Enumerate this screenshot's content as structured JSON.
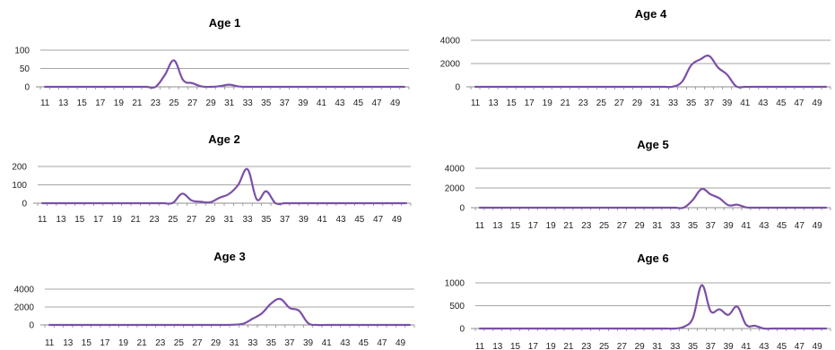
{
  "chart_data": [
    {
      "type": "line",
      "title": "Age 1",
      "x": [
        11,
        12,
        13,
        14,
        15,
        16,
        17,
        18,
        19,
        20,
        21,
        22,
        23,
        24,
        25,
        26,
        27,
        28,
        29,
        30,
        31,
        32,
        33,
        34,
        35,
        36,
        37,
        38,
        39,
        40,
        41,
        42,
        43,
        44,
        45,
        46,
        47,
        48,
        49,
        50
      ],
      "series": [
        {
          "values": [
            0,
            0,
            0,
            0,
            0,
            0,
            0,
            0,
            0,
            0,
            0,
            0,
            0,
            32,
            72,
            18,
            10,
            1,
            0,
            2,
            6,
            1,
            0,
            0,
            0,
            0,
            0,
            0,
            0,
            0,
            0,
            0,
            0,
            0,
            0,
            0,
            0,
            0,
            0,
            0
          ]
        }
      ],
      "ylim": [
        0,
        100
      ],
      "yticks": [
        "0",
        "50",
        "100"
      ],
      "xticks": [
        "11",
        "13",
        "15",
        "17",
        "19",
        "21",
        "23",
        "25",
        "27",
        "29",
        "31",
        "33",
        "35",
        "37",
        "39",
        "41",
        "43",
        "45",
        "47",
        "49"
      ],
      "grid": "horizontal",
      "legend": "none"
    },
    {
      "type": "line",
      "title": "Age 2",
      "x": [
        11,
        12,
        13,
        14,
        15,
        16,
        17,
        18,
        19,
        20,
        21,
        22,
        23,
        24,
        25,
        26,
        27,
        28,
        29,
        30,
        31,
        32,
        33,
        34,
        35,
        36,
        37,
        38,
        39,
        40,
        41,
        42,
        43,
        44,
        45,
        46,
        47,
        48,
        49,
        50
      ],
      "series": [
        {
          "values": [
            0,
            0,
            0,
            0,
            0,
            0,
            0,
            0,
            0,
            0,
            0,
            0,
            0,
            0,
            2,
            52,
            15,
            8,
            5,
            30,
            50,
            100,
            185,
            20,
            65,
            0,
            0,
            0,
            0,
            0,
            0,
            0,
            0,
            0,
            0,
            0,
            0,
            0,
            0,
            0
          ]
        }
      ],
      "ylim": [
        0,
        200
      ],
      "yticks": [
        "0",
        "100",
        "200"
      ],
      "xticks": [
        "11",
        "13",
        "15",
        "17",
        "19",
        "21",
        "23",
        "25",
        "27",
        "29",
        "31",
        "33",
        "35",
        "37",
        "39",
        "41",
        "43",
        "45",
        "47",
        "49"
      ],
      "grid": "horizontal",
      "legend": "none"
    },
    {
      "type": "line",
      "title": "Age 3",
      "x": [
        11,
        12,
        13,
        14,
        15,
        16,
        17,
        18,
        19,
        20,
        21,
        22,
        23,
        24,
        25,
        26,
        27,
        28,
        29,
        30,
        31,
        32,
        33,
        34,
        35,
        36,
        37,
        38,
        39,
        40,
        41,
        42,
        43,
        44,
        45,
        46,
        47,
        48,
        49,
        50
      ],
      "series": [
        {
          "values": [
            0,
            0,
            0,
            0,
            0,
            0,
            0,
            0,
            0,
            0,
            0,
            0,
            0,
            0,
            0,
            0,
            0,
            0,
            0,
            0,
            30,
            150,
            700,
            1300,
            2400,
            2900,
            1900,
            1600,
            200,
            0,
            0,
            0,
            0,
            0,
            0,
            0,
            0,
            0,
            0,
            0
          ]
        }
      ],
      "ylim": [
        0,
        4000
      ],
      "yticks": [
        "0",
        "2000",
        "4000"
      ],
      "xticks": [
        "11",
        "13",
        "15",
        "17",
        "19",
        "21",
        "23",
        "25",
        "27",
        "29",
        "31",
        "33",
        "35",
        "37",
        "39",
        "41",
        "43",
        "45",
        "47",
        "49"
      ],
      "grid": "horizontal",
      "legend": "none"
    },
    {
      "type": "line",
      "title": "Age 4",
      "x": [
        11,
        12,
        13,
        14,
        15,
        16,
        17,
        18,
        19,
        20,
        21,
        22,
        23,
        24,
        25,
        26,
        27,
        28,
        29,
        30,
        31,
        32,
        33,
        34,
        35,
        36,
        37,
        38,
        39,
        40,
        41,
        42,
        43,
        44,
        45,
        46,
        47,
        48,
        49,
        50
      ],
      "series": [
        {
          "values": [
            0,
            0,
            0,
            0,
            0,
            0,
            0,
            0,
            0,
            0,
            0,
            0,
            0,
            0,
            0,
            0,
            0,
            0,
            0,
            0,
            0,
            0,
            20,
            450,
            1850,
            2350,
            2650,
            1650,
            1050,
            50,
            0,
            0,
            0,
            0,
            0,
            0,
            0,
            0,
            0,
            0
          ]
        }
      ],
      "ylim": [
        0,
        4000
      ],
      "yticks": [
        "0",
        "2000",
        "4000"
      ],
      "xticks": [
        "11",
        "13",
        "15",
        "17",
        "19",
        "21",
        "23",
        "25",
        "27",
        "29",
        "31",
        "33",
        "35",
        "37",
        "39",
        "41",
        "43",
        "45",
        "47",
        "49"
      ],
      "grid": "horizontal",
      "legend": "none"
    },
    {
      "type": "line",
      "title": "Age 5",
      "x": [
        11,
        12,
        13,
        14,
        15,
        16,
        17,
        18,
        19,
        20,
        21,
        22,
        23,
        24,
        25,
        26,
        27,
        28,
        29,
        30,
        31,
        32,
        33,
        34,
        35,
        36,
        37,
        38,
        39,
        40,
        41,
        42,
        43,
        44,
        45,
        46,
        47,
        48,
        49,
        50
      ],
      "series": [
        {
          "values": [
            0,
            0,
            0,
            0,
            0,
            0,
            0,
            0,
            0,
            0,
            0,
            0,
            0,
            0,
            0,
            0,
            0,
            0,
            0,
            0,
            0,
            0,
            0,
            10,
            800,
            1900,
            1350,
            950,
            250,
            300,
            30,
            0,
            0,
            0,
            0,
            0,
            0,
            0,
            0,
            0
          ]
        }
      ],
      "ylim": [
        0,
        4000
      ],
      "yticks": [
        "0",
        "2000",
        "4000"
      ],
      "xticks": [
        "11",
        "13",
        "15",
        "17",
        "19",
        "21",
        "23",
        "25",
        "27",
        "29",
        "31",
        "33",
        "35",
        "37",
        "39",
        "41",
        "43",
        "45",
        "47",
        "49"
      ],
      "grid": "horizontal",
      "legend": "none"
    },
    {
      "type": "line",
      "title": "Age 6",
      "x": [
        11,
        12,
        13,
        14,
        15,
        16,
        17,
        18,
        19,
        20,
        21,
        22,
        23,
        24,
        25,
        26,
        27,
        28,
        29,
        30,
        31,
        32,
        33,
        34,
        35,
        36,
        37,
        38,
        39,
        40,
        41,
        42,
        43,
        44,
        45,
        46,
        47,
        48,
        49,
        50
      ],
      "series": [
        {
          "values": [
            0,
            0,
            0,
            0,
            0,
            0,
            0,
            0,
            0,
            0,
            0,
            0,
            0,
            0,
            0,
            0,
            0,
            0,
            0,
            0,
            0,
            0,
            0,
            40,
            230,
            950,
            380,
            420,
            300,
            480,
            80,
            60,
            0,
            0,
            0,
            0,
            0,
            0,
            0,
            0
          ]
        }
      ],
      "ylim": [
        0,
        1000
      ],
      "yticks": [
        "0",
        "500",
        "1000"
      ],
      "xticks": [
        "11",
        "13",
        "15",
        "17",
        "19",
        "21",
        "23",
        "25",
        "27",
        "29",
        "31",
        "33",
        "35",
        "37",
        "39",
        "41",
        "43",
        "45",
        "47",
        "49"
      ],
      "grid": "horizontal",
      "legend": "none"
    }
  ],
  "colors": {
    "line": "#7b4fa8",
    "grid": "#a6a6a6",
    "axis": "#8c8c8c"
  }
}
